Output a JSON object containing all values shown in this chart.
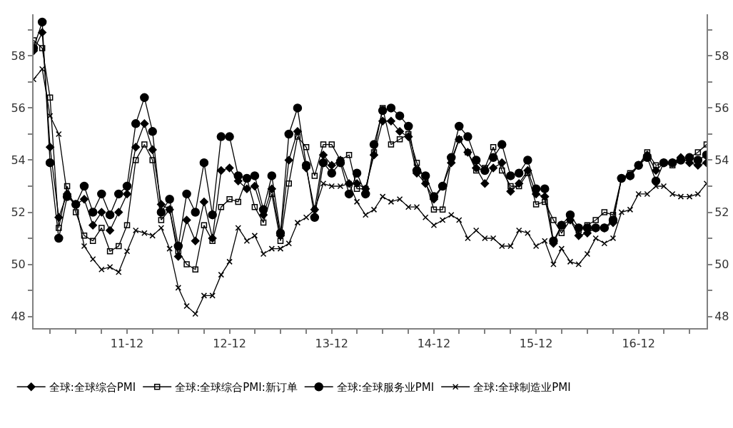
{
  "chart_data": {
    "type": "line",
    "x": [
      "2011-01",
      "2011-02",
      "2011-03",
      "2011-04",
      "2011-05",
      "2011-06",
      "2011-07",
      "2011-08",
      "2011-09",
      "2011-10",
      "2011-11",
      "2011-12",
      "2012-01",
      "2012-02",
      "2012-03",
      "2012-04",
      "2012-05",
      "2012-06",
      "2012-07",
      "2012-08",
      "2012-09",
      "2012-10",
      "2012-11",
      "2012-12",
      "2013-01",
      "2013-02",
      "2013-03",
      "2013-04",
      "2013-05",
      "2013-06",
      "2013-07",
      "2013-08",
      "2013-09",
      "2013-10",
      "2013-11",
      "2013-12",
      "2014-01",
      "2014-02",
      "2014-03",
      "2014-04",
      "2014-05",
      "2014-06",
      "2014-07",
      "2014-08",
      "2014-09",
      "2014-10",
      "2014-11",
      "2014-12",
      "2015-01",
      "2015-02",
      "2015-03",
      "2015-04",
      "2015-05",
      "2015-06",
      "2015-07",
      "2015-08",
      "2015-09",
      "2015-10",
      "2015-11",
      "2015-12",
      "2016-01",
      "2016-02",
      "2016-03",
      "2016-04",
      "2016-05",
      "2016-06",
      "2016-07",
      "2016-08",
      "2016-09",
      "2016-10",
      "2016-11",
      "2016-12",
      "2017-01",
      "2017-02",
      "2017-03",
      "2017-04",
      "2017-05",
      "2017-06",
      "2017-07",
      "2017-08"
    ],
    "series": [
      {
        "name": "全球:全球综合PMI",
        "color": "#000000",
        "marker": "diamond",
        "values": [
          58.2,
          58.9,
          54.5,
          51.8,
          52.7,
          52.3,
          52.5,
          51.5,
          52.0,
          51.3,
          52.0,
          52.7,
          54.5,
          55.4,
          54.4,
          52.3,
          52.1,
          50.3,
          51.7,
          50.9,
          52.4,
          51.0,
          53.6,
          53.7,
          53.2,
          52.9,
          53.0,
          51.9,
          52.9,
          51.1,
          54.0,
          55.1,
          53.7,
          52.1,
          54.2,
          53.8,
          54.0,
          53.1,
          53.1,
          52.9,
          54.2,
          55.5,
          55.5,
          55.1,
          54.9,
          53.5,
          53.1,
          52.5,
          53.0,
          53.9,
          54.8,
          54.3,
          53.7,
          53.1,
          53.7,
          53.9,
          52.8,
          53.1,
          53.6,
          52.7,
          52.6,
          50.8,
          51.5,
          51.7,
          51.1,
          51.2,
          51.4,
          51.4,
          51.6,
          53.3,
          53.4,
          53.8,
          54.2,
          53.6,
          53.9,
          53.9,
          54.1,
          53.9,
          53.8,
          53.9
        ]
      },
      {
        "name": "全球:全球综合PMI:新订单",
        "color": "#000000",
        "marker": "square",
        "values": [
          58.6,
          58.3,
          56.4,
          51.4,
          53.0,
          52.0,
          51.1,
          50.9,
          51.4,
          50.5,
          50.7,
          51.5,
          54.0,
          54.6,
          54.0,
          51.7,
          52.1,
          50.5,
          50.0,
          49.8,
          51.5,
          50.9,
          52.2,
          52.5,
          52.4,
          53.3,
          52.2,
          51.6,
          52.7,
          50.9,
          53.1,
          54.9,
          54.5,
          53.4,
          54.6,
          54.6,
          54.0,
          54.2,
          52.9,
          52.9,
          54.3,
          56.0,
          54.6,
          54.8,
          55.0,
          53.9,
          53.2,
          52.1,
          52.1,
          54.0,
          54.8,
          54.3,
          53.6,
          53.7,
          54.5,
          53.6,
          53.0,
          53.0,
          53.5,
          52.3,
          52.4,
          51.7,
          51.2,
          51.7,
          51.3,
          51.5,
          51.7,
          52.0,
          51.9,
          53.3,
          53.5,
          53.8,
          54.3,
          53.8,
          53.9,
          53.8,
          54.0,
          54.1,
          54.3,
          54.6
        ]
      },
      {
        "name": "全球:全球服务业PMI",
        "color": "#000000",
        "marker": "circle",
        "values": [
          58.3,
          59.3,
          53.9,
          51.0,
          52.6,
          52.3,
          53.0,
          52.0,
          52.7,
          51.9,
          52.7,
          53.0,
          55.4,
          56.4,
          55.1,
          52.0,
          52.5,
          50.7,
          52.7,
          52.0,
          53.9,
          51.9,
          54.9,
          54.9,
          53.4,
          53.3,
          53.4,
          52.1,
          53.4,
          51.2,
          55.0,
          56.0,
          53.8,
          51.8,
          53.9,
          53.5,
          53.9,
          52.7,
          53.5,
          52.7,
          54.6,
          55.9,
          56.0,
          55.7,
          55.3,
          53.6,
          53.4,
          52.6,
          53.0,
          54.1,
          55.3,
          54.9,
          54.0,
          53.6,
          54.1,
          54.6,
          53.4,
          53.5,
          54.0,
          52.9,
          52.9,
          50.9,
          51.5,
          51.9,
          51.4,
          51.4,
          51.4,
          51.4,
          51.7,
          53.3,
          53.4,
          53.8,
          54.1,
          53.2,
          53.9,
          53.9,
          54.0,
          54.1,
          54.0,
          54.2
        ]
      },
      {
        "name": "全球:全球制造业PMI",
        "color": "#000000",
        "marker": "cross",
        "values": [
          57.1,
          57.5,
          55.7,
          55.0,
          52.7,
          52.3,
          50.7,
          50.2,
          49.8,
          49.9,
          49.7,
          50.5,
          51.3,
          51.2,
          51.1,
          51.4,
          50.6,
          49.1,
          48.4,
          48.1,
          48.8,
          48.8,
          49.6,
          50.1,
          51.4,
          50.9,
          51.1,
          50.4,
          50.6,
          50.6,
          50.8,
          51.6,
          51.8,
          52.1,
          53.1,
          53.0,
          53.0,
          53.1,
          52.4,
          51.9,
          52.1,
          52.6,
          52.4,
          52.5,
          52.2,
          52.2,
          51.8,
          51.5,
          51.7,
          51.9,
          51.7,
          51.0,
          51.3,
          51.0,
          51.0,
          50.7,
          50.7,
          51.3,
          51.2,
          50.7,
          50.9,
          50.0,
          50.6,
          50.1,
          50.0,
          50.4,
          51.0,
          50.8,
          51.0,
          52.0,
          52.1,
          52.7,
          52.7,
          53.0,
          53.0,
          52.7,
          52.6,
          52.6,
          52.7,
          53.1
        ]
      }
    ],
    "xlim": [
      "2011-01",
      "2017-08"
    ],
    "xticks": [
      {
        "value": "2011-03",
        "label": null
      },
      {
        "value": "2011-06",
        "label": null
      },
      {
        "value": "2011-09",
        "label": null
      },
      {
        "value": "2011-12",
        "label": "11-12"
      },
      {
        "value": "2012-03",
        "label": null
      },
      {
        "value": "2012-06",
        "label": null
      },
      {
        "value": "2012-09",
        "label": null
      },
      {
        "value": "2012-12",
        "label": "12-12"
      },
      {
        "value": "2013-03",
        "label": null
      },
      {
        "value": "2013-06",
        "label": null
      },
      {
        "value": "2013-09",
        "label": null
      },
      {
        "value": "2013-12",
        "label": "13-12"
      },
      {
        "value": "2014-03",
        "label": null
      },
      {
        "value": "2014-06",
        "label": null
      },
      {
        "value": "2014-09",
        "label": null
      },
      {
        "value": "2014-12",
        "label": "14-12"
      },
      {
        "value": "2015-03",
        "label": null
      },
      {
        "value": "2015-06",
        "label": null
      },
      {
        "value": "2015-09",
        "label": null
      },
      {
        "value": "2015-12",
        "label": "15-12"
      },
      {
        "value": "2016-03",
        "label": null
      },
      {
        "value": "2016-06",
        "label": null
      },
      {
        "value": "2016-09",
        "label": null
      },
      {
        "value": "2016-12",
        "label": "16-12"
      },
      {
        "value": "2017-03",
        "label": null
      },
      {
        "value": "2017-06",
        "label": null
      }
    ],
    "ylim": [
      47.55,
      59.6
    ],
    "yticks": [
      48,
      {
        "value": 49,
        "label": null
      },
      50,
      {
        "value": 51,
        "label": null
      },
      52,
      {
        "value": 53,
        "label": null
      },
      54,
      {
        "value": 55,
        "label": null
      },
      56,
      {
        "value": 57,
        "label": null
      },
      58,
      {
        "value": 59,
        "label": null
      }
    ],
    "y2lim": [
      47.55,
      59.6
    ],
    "y2ticks": [
      48,
      {
        "value": 49,
        "label": null
      },
      50,
      {
        "value": 51,
        "label": null
      },
      52,
      {
        "value": 53,
        "label": null
      },
      54,
      {
        "value": 55,
        "label": null
      },
      56,
      {
        "value": 57,
        "label": null
      },
      58,
      {
        "value": 59,
        "label": null
      }
    ],
    "grid": false,
    "legend": "bottom",
    "line_style": "solid"
  }
}
